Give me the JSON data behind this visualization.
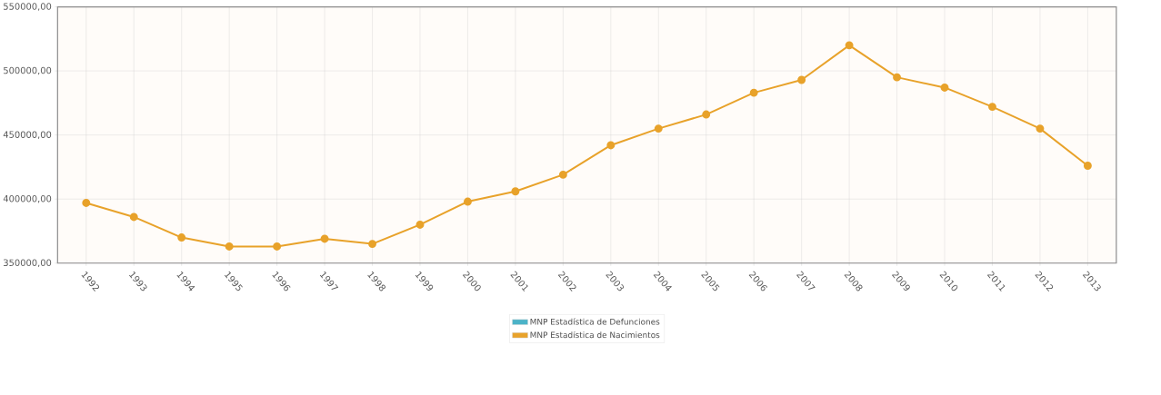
{
  "chart_data": {
    "type": "line",
    "categories": [
      "1992",
      "1993",
      "1994",
      "1995",
      "1996",
      "1997",
      "1998",
      "1999",
      "2000",
      "2001",
      "2002",
      "2003",
      "2004",
      "2005",
      "2006",
      "2007",
      "2008",
      "2009",
      "2010",
      "2011",
      "2012",
      "2013"
    ],
    "series": [
      {
        "name": "MNP Estadística de Defunciones",
        "color": "#4bb3c8",
        "values": [
          null,
          null,
          null,
          null,
          null,
          null,
          null,
          null,
          null,
          null,
          null,
          null,
          null,
          null,
          null,
          null,
          null,
          null,
          null,
          null,
          null,
          null
        ]
      },
      {
        "name": "MNP Estadística de Nacimientos",
        "color": "#e8a22a",
        "values": [
          397000,
          386000,
          370000,
          363000,
          363000,
          369000,
          365000,
          380000,
          398000,
          406000,
          419000,
          442000,
          455000,
          466000,
          483000,
          493000,
          520000,
          495000,
          487000,
          472000,
          455000,
          426000
        ]
      }
    ],
    "ylim": [
      350000,
      550000
    ],
    "yticks": [
      {
        "value": 350000,
        "label": "350000,00"
      },
      {
        "value": 400000,
        "label": "400000,00"
      },
      {
        "value": 450000,
        "label": "450000,00"
      },
      {
        "value": 500000,
        "label": "500000,00"
      },
      {
        "value": 550000,
        "label": "550000,00"
      }
    ],
    "grid": true,
    "legend": "bottom",
    "marker": "circle",
    "line_style": "solid"
  }
}
